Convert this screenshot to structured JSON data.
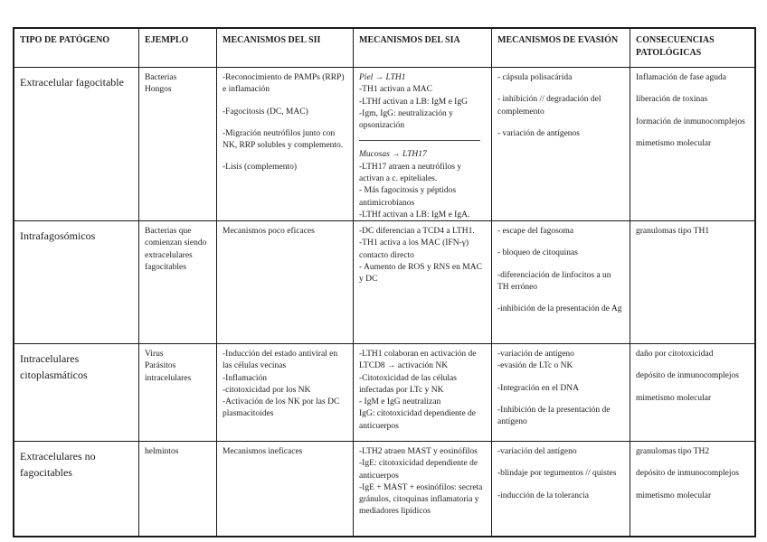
{
  "table": {
    "columns": [
      {
        "key": "tipo",
        "label": "TIPO DE PATÓGENO"
      },
      {
        "key": "ejemplo",
        "label": "EJEMPLO"
      },
      {
        "key": "sii",
        "label": "MECANISMOS DEL SII"
      },
      {
        "key": "sia",
        "label": "MECANISMOS DEL SIA"
      },
      {
        "key": "evasion",
        "label": "MECANISMOS DE EVASIÓN"
      },
      {
        "key": "consecuencias",
        "label": "CONSECUENCIAS PATOLÓGICAS"
      }
    ],
    "rows": [
      {
        "cells": [
          {
            "blocks": [
              {
                "text": "Extracelular fagocitable"
              }
            ]
          },
          {
            "blocks": [
              {
                "text": "Bacterias"
              },
              {
                "text": "Hongos"
              }
            ]
          },
          {
            "blocks": [
              {
                "text": "-Reconocimiento de PAMPs (RRP) e inflamación"
              },
              {
                "text": "-Fagocitosis (DC, MAC)",
                "gap": true
              },
              {
                "text": "-Migración neutrófilos junto con NK, RRP solubles y complemento.",
                "gap": true
              },
              {
                "text": "-Lisis (complemento)",
                "gap": true
              }
            ]
          },
          {
            "blocks": [
              {
                "text": "Piel → LTH1",
                "italic": true
              },
              {
                "text": "-TH1 activan a MAC"
              },
              {
                "text": "-LTHf activan a LB: IgM e IgG"
              },
              {
                "text": "-Igm, IgG: neutralización y opsonización"
              },
              {
                "divider": true
              },
              {
                "text": "Mucosas → LTH17",
                "italic": true
              },
              {
                "text": "-LTH17 atraen a neutrófilos y activan a c. epiteliales."
              },
              {
                "text": "- Más fagocitosis y péptidos antimicrobianos"
              },
              {
                "text": "-LTHf activan a LB: IgM e IgA."
              }
            ]
          },
          {
            "blocks": [
              {
                "text": "- cápsula polisacárida"
              },
              {
                "text": "- inhibición // degradación del complemento",
                "gap": true
              },
              {
                "text": "- variación de antígenos",
                "gap": true
              }
            ]
          },
          {
            "blocks": [
              {
                "text": "Inflamación de fase aguda"
              },
              {
                "text": "liberación de toxinas",
                "gap": true
              },
              {
                "text": "formación de inmunocomplejos",
                "gap": true
              },
              {
                "text": "mimetismo molecular",
                "gap": true
              }
            ]
          }
        ]
      },
      {
        "cells": [
          {
            "blocks": [
              {
                "text": "Intrafagosómicos"
              }
            ]
          },
          {
            "blocks": [
              {
                "text": "Bacterias que comienzan siendo extracelulares fagocitables"
              }
            ]
          },
          {
            "blocks": [
              {
                "text": "Mecanismos poco eficaces"
              }
            ]
          },
          {
            "blocks": [
              {
                "text": "-DC diferencian a TCD4 a LTH1."
              },
              {
                "text": "-TH1 activa a los MAC (IFN-γ) contacto directo"
              },
              {
                "text": "- Aumento de ROS y RNS en MAC y DC"
              }
            ]
          },
          {
            "blocks": [
              {
                "text": "- escape del fagosoma"
              },
              {
                "text": "- bloqueo de citoquinas",
                "gap": true
              },
              {
                "text": "-diferenciación de linfocitos a un TH erróneo",
                "gap": true
              },
              {
                "text": "-inhibición de la presentación de Ag",
                "gap": true
              }
            ]
          },
          {
            "blocks": [
              {
                "text": "granulomas tipo TH1"
              }
            ]
          }
        ]
      },
      {
        "cells": [
          {
            "blocks": [
              {
                "text": "Intracelulares citoplasmáticos"
              }
            ]
          },
          {
            "blocks": [
              {
                "text": "Virus"
              },
              {
                "text": "Parásitos intracelulares"
              }
            ]
          },
          {
            "blocks": [
              {
                "text": "-Inducción del estado antiviral en las células vecinas"
              },
              {
                "text": "-Inflamación"
              },
              {
                "text": "-citotoxicidad por los NK"
              },
              {
                "text": "-Activación de los NK por las DC plasmacitoides"
              }
            ]
          },
          {
            "blocks": [
              {
                "text": "-LTH1 colaboran en activación de LTCD8 → activación NK"
              },
              {
                "text": "-Citotoxicidad de las células infectadas por LTc y NK"
              },
              {
                "text": "- IgM e IgG neutralizan"
              },
              {
                "text": "IgG: citotoxicidad dependiente de anticuerpos"
              }
            ]
          },
          {
            "blocks": [
              {
                "text": "-variación de antígeno"
              },
              {
                "text": "-evasión de LTc o NK"
              },
              {
                "text": "-Integración en el DNA",
                "gap": true
              },
              {
                "text": "-Inhibición de la presentación de antígeno",
                "gap": true
              }
            ]
          },
          {
            "blocks": [
              {
                "text": "daño por citotoxicidad"
              },
              {
                "text": "depósito de inmunocomplejos",
                "gap": true
              },
              {
                "text": "mimetismo molecular",
                "gap": true
              }
            ]
          }
        ]
      },
      {
        "cells": [
          {
            "blocks": [
              {
                "text": "Extracelulares no fagocitables"
              }
            ]
          },
          {
            "blocks": [
              {
                "text": "helmintos"
              }
            ]
          },
          {
            "blocks": [
              {
                "text": "Mecanismos ineficaces"
              }
            ]
          },
          {
            "blocks": [
              {
                "text": "-LTH2 atraen MAST y eosinófilos"
              },
              {
                "text": "-IgE: citotoxicidad dependiente de anticuerpos"
              },
              {
                "text": "-IgE + MAST + eosinófilos: secreta gránulos, citoquinas inflamatoria y mediadores lipídicos"
              }
            ]
          },
          {
            "blocks": [
              {
                "text": "-variación del antígeno"
              },
              {
                "text": "-blindaje por tegumentos // quistes",
                "gap": true
              },
              {
                "text": "-inducción de la tolerancia",
                "gap": true
              }
            ]
          },
          {
            "blocks": [
              {
                "text": "granulomas tipo TH2"
              },
              {
                "text": "depósito de inmunocomplejos",
                "gap": true
              },
              {
                "text": "mimetismo molecular",
                "gap": true
              }
            ]
          }
        ]
      }
    ]
  }
}
